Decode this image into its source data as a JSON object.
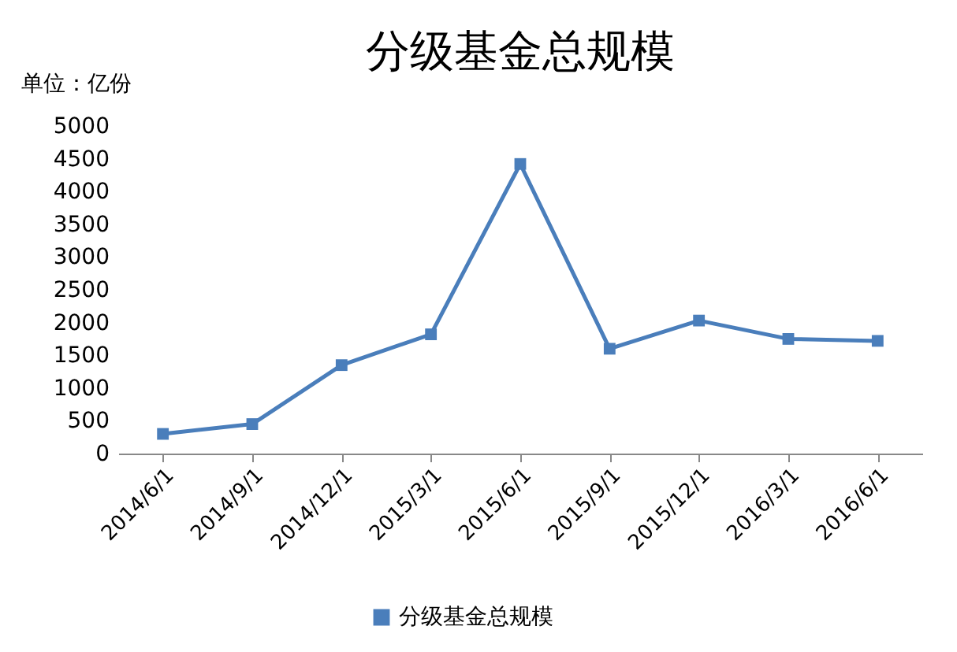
{
  "chart_data": {
    "type": "line",
    "title": "分级基金总规模",
    "ylabel": "单位：亿份",
    "categories": [
      "2014/6/1",
      "2014/9/1",
      "2014/12/1",
      "2015/3/1",
      "2015/6/1",
      "2015/9/1",
      "2015/12/1",
      "2016/3/1",
      "2016/6/1"
    ],
    "series": [
      {
        "name": "分级基金总规模",
        "color": "#4a7ebb",
        "values": [
          300,
          450,
          1350,
          1820,
          4420,
          1600,
          2030,
          1750,
          1720
        ]
      }
    ],
    "ylim": [
      0,
      5000
    ],
    "yticks": [
      0,
      500,
      1000,
      1500,
      2000,
      2500,
      3000,
      3500,
      4000,
      4500,
      5000
    ],
    "grid": false,
    "legend": "bottom",
    "marker": "square",
    "line_style": "solid"
  }
}
